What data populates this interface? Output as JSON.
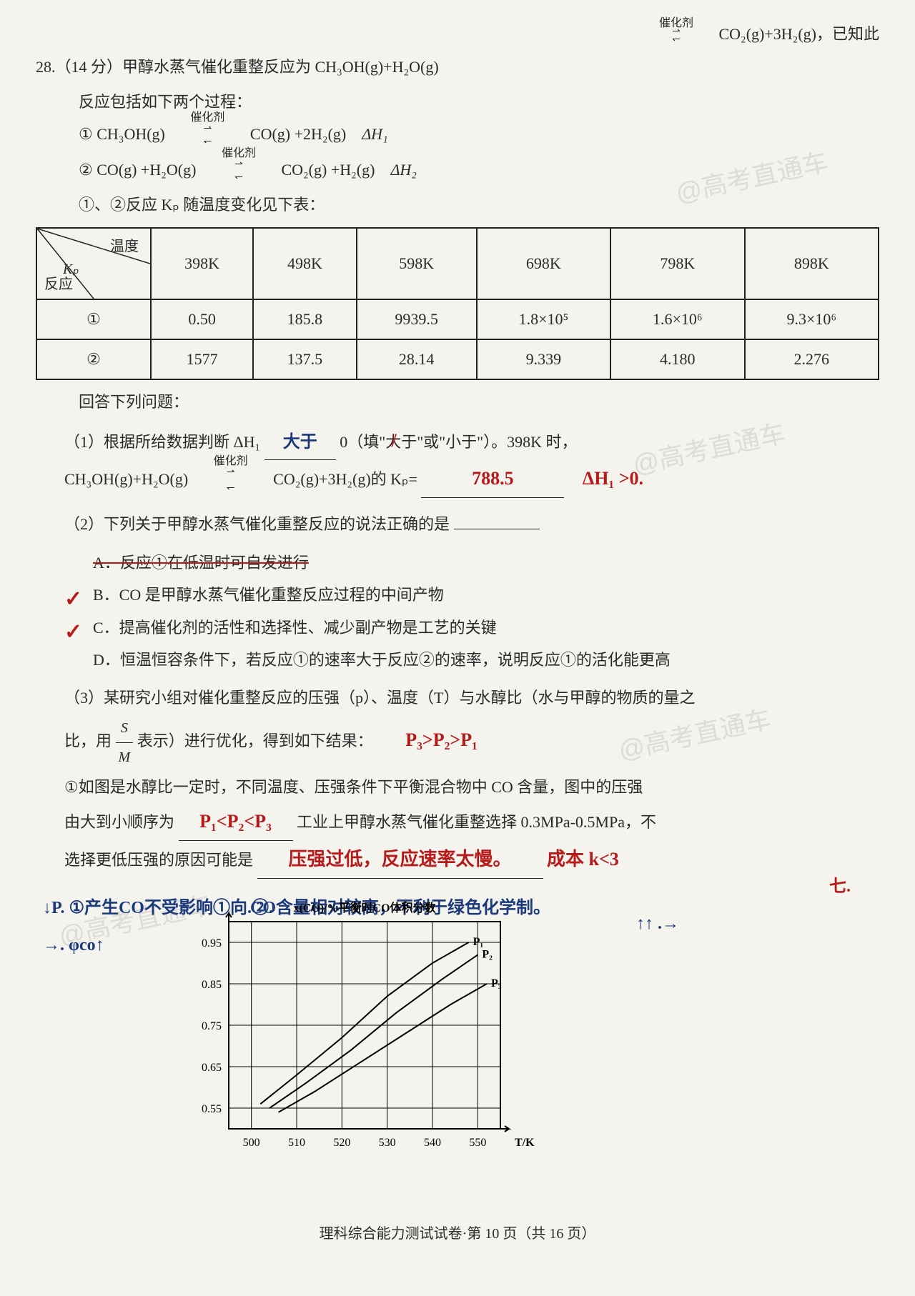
{
  "watermarks": {
    "w1": "@高考直通车",
    "w2": "@高考直通车",
    "w3": "@高考直通车",
    "w4": "@高考直通车",
    "w5": "@高考直通车"
  },
  "top": {
    "catalyst": "催化剂",
    "right_eq": "CO₂(g)+3H₂(g)，已知此"
  },
  "q28": {
    "head": "28.（14 分）甲醇水蒸气催化重整反应为 CH₃OH(g)+H₂O(g)",
    "line2": "反应包括如下两个过程：",
    "r1_left": "① CH₃OH(g)",
    "r1_cat": "催化剂",
    "r1_right": "CO(g) +2H₂(g)",
    "r1_dh": "ΔH₁",
    "r2_left": "② CO(g) +H₂O(g)",
    "r2_cat": "催化剂",
    "r2_right": "CO₂(g) +H₂(g)",
    "r2_dh": "ΔH₂",
    "table_caption": "①、②反应 Kₚ 随温度变化见下表："
  },
  "table": {
    "header_temp": "温度",
    "header_kp": "Kₚ",
    "header_rxn": "反应",
    "temps": [
      "398K",
      "498K",
      "598K",
      "698K",
      "798K",
      "898K"
    ],
    "row1_label": "①",
    "row1": [
      "0.50",
      "185.8",
      "9939.5",
      "1.8×10⁵",
      "1.6×10⁶",
      "9.3×10⁶"
    ],
    "row2_label": "②",
    "row2": [
      "1577",
      "137.5",
      "28.14",
      "9.339",
      "4.180",
      "2.276"
    ]
  },
  "questions": {
    "answer_title": "回答下列问题：",
    "q1_a": "（1）根据所给数据判断 ΔH₁",
    "q1_blank1": "大于",
    "q1_b": "0（填\"大于\"或\"小于\"）。398K 时，",
    "q1_struck": "大于",
    "q1_c": "CH₃OH(g)+H₂O(g)",
    "q1_cat": "催化剂",
    "q1_d": "CO₂(g)+3H₂(g)的 Kₚ=",
    "q1_ans": "788.5",
    "q1_note": "ΔH₁ >0.",
    "q2_a": "（2）下列关于甲醇水蒸气催化重整反应的说法正确的是",
    "optA": "A．反应①在低温时可自发进行",
    "optB": "B．CO 是甲醇水蒸气催化重整反应过程的中间产物",
    "optC": "C．提高催化剂的活性和选择性、减少副产物是工艺的关键",
    "optD": "D．恒温恒容条件下，若反应①的速率大于反应②的速率，说明反应①的活化能更高",
    "q3_a": "（3）某研究小组对催化重整反应的压强（p）、温度（T）与水醇比（水与甲醇的物质的量之",
    "q3_b": "比，用",
    "q3_frac_num": "S",
    "q3_frac_den": "M",
    "q3_c": "表示）进行优化，得到如下结果：",
    "q3_1a": "①如图是水醇比一定时，不同温度、压强条件下平衡混合物中 CO 含量，图中的压强",
    "q3_hw1": "P₃>P₂>P₁",
    "q3_1b": "由大到小顺序为",
    "q3_blank2": "P₁<P₂<P₃",
    "q3_1c": "工业上甲醇水蒸气催化重整选择 0.3MPa-0.5MPa，不",
    "q3_1d": "选择更低压强的原因可能是",
    "q3_ans2": "压强过低，反应速率太慢。",
    "q3_ans3": "成本 k<3"
  },
  "margin": {
    "left1": "↓P. ①产生CO不受影响①向.②.",
    "left2": "→. φco↑",
    "mid": "CO含量相对较高，不利于绿色化学制。",
    "right1": "↑↑ .→",
    "right2": "七."
  },
  "chart": {
    "ylabel": "x(CO)/%平衡时CO体积分数",
    "xlabel": "T/K",
    "xticks": [
      "500",
      "510",
      "520",
      "530",
      "540",
      "550"
    ],
    "yticks": [
      "0.55",
      "0.65",
      "0.75",
      "0.85",
      "0.95"
    ],
    "series_labels": [
      "P₁",
      "P₂",
      "P₃"
    ],
    "series": {
      "P1": [
        [
          502,
          0.56
        ],
        [
          510,
          0.63
        ],
        [
          520,
          0.72
        ],
        [
          530,
          0.82
        ],
        [
          540,
          0.9
        ],
        [
          548,
          0.95
        ]
      ],
      "P2": [
        [
          504,
          0.55
        ],
        [
          512,
          0.61
        ],
        [
          522,
          0.69
        ],
        [
          532,
          0.78
        ],
        [
          542,
          0.86
        ],
        [
          550,
          0.92
        ]
      ],
      "P3": [
        [
          506,
          0.54
        ],
        [
          514,
          0.59
        ],
        [
          524,
          0.66
        ],
        [
          534,
          0.73
        ],
        [
          544,
          0.8
        ],
        [
          552,
          0.85
        ]
      ]
    },
    "xlim": [
      495,
      555
    ],
    "ylim": [
      0.5,
      1.0
    ],
    "line_color": "#000000",
    "line_width": 2,
    "grid_color": "#000000",
    "bg_color": "#f5f3ee",
    "font_size": 16
  },
  "footer": {
    "text": "理科综合能力测试试卷·第 10 页（共 16 页）"
  }
}
